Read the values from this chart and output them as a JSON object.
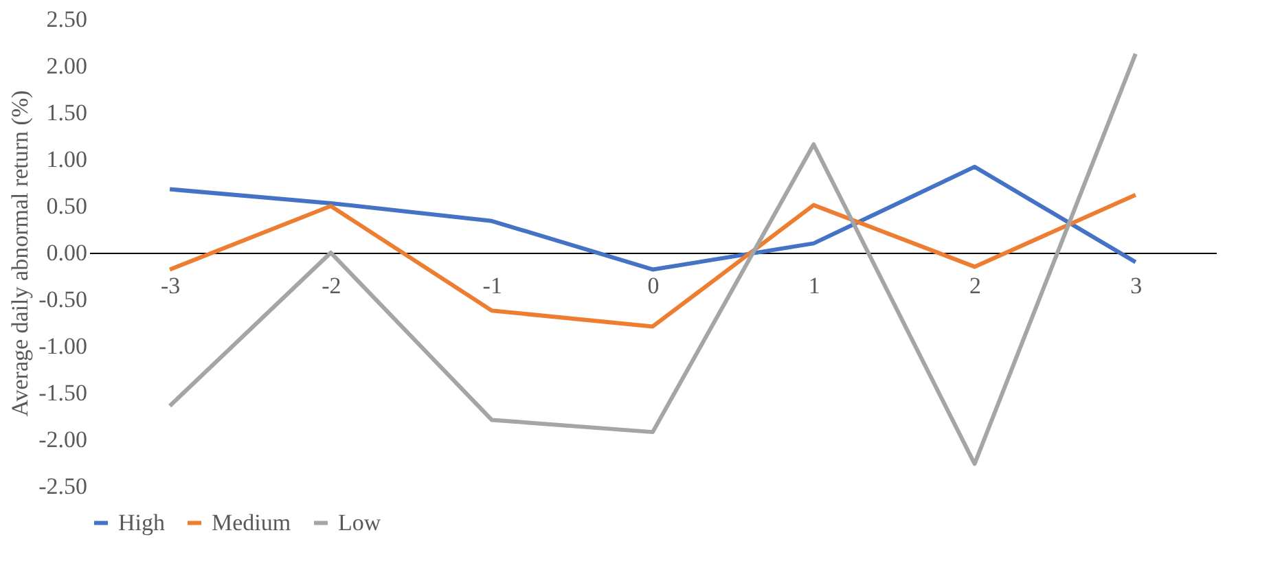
{
  "chart_data": {
    "type": "line",
    "ylabel": "Average daily abnormal return (%)",
    "categories": [
      "-3",
      "-2",
      "-1",
      "0",
      "1",
      "2",
      "3"
    ],
    "series": [
      {
        "name": "High",
        "color": "#4472c4",
        "values": [
          0.68,
          0.53,
          0.34,
          -0.18,
          0.1,
          0.92,
          -0.1
        ]
      },
      {
        "name": "Medium",
        "color": "#ed7d31",
        "values": [
          -0.18,
          0.5,
          -0.62,
          -0.79,
          0.51,
          -0.15,
          0.62
        ]
      },
      {
        "name": "Low",
        "color": "#a5a5a5",
        "values": [
          -1.64,
          0.0,
          -1.79,
          -1.92,
          1.16,
          -2.26,
          2.13
        ]
      }
    ],
    "ylim": [
      -2.5,
      2.5
    ],
    "yticks": [
      {
        "value": -2.5,
        "label": "-2.50"
      },
      {
        "value": -2.0,
        "label": "-2.00"
      },
      {
        "value": -1.5,
        "label": "-1.50"
      },
      {
        "value": -1.0,
        "label": "-1.00"
      },
      {
        "value": -0.5,
        "label": "-0.50"
      },
      {
        "value": 0.0,
        "label": "0.00"
      },
      {
        "value": 0.5,
        "label": "0.50"
      },
      {
        "value": 1.0,
        "label": "1.00"
      },
      {
        "value": 1.5,
        "label": "1.50"
      },
      {
        "value": 2.0,
        "label": "2.00"
      },
      {
        "value": 2.5,
        "label": "2.50"
      }
    ],
    "legend": "bottom",
    "grid": false,
    "marker": "none",
    "line_style": "solid"
  }
}
